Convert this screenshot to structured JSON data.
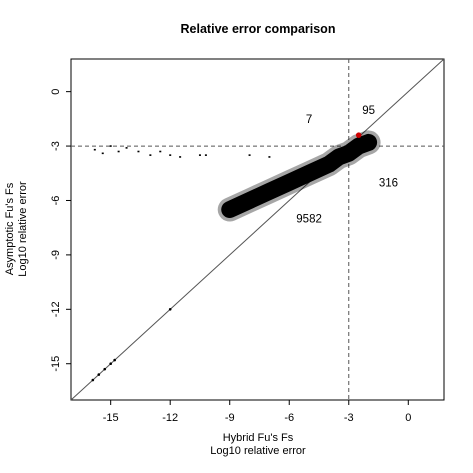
{
  "chart_data": {
    "type": "scatter",
    "title": "Relative error comparison",
    "xlabel": [
      "Hybrid Fu's Fs",
      "Log10 relative error"
    ],
    "ylabel": [
      "Asymptotic Fu's Fs",
      "Log10 relative error"
    ],
    "xlim": [
      -17.0,
      1.8
    ],
    "ylim": [
      -17.0,
      1.8
    ],
    "xticks": [
      -15,
      -12,
      -9,
      -6,
      -3,
      0
    ],
    "yticks": [
      0,
      -3,
      -6,
      -9,
      -12,
      -15
    ],
    "reference_lines": {
      "diagonal": "y = x",
      "vertical_dashed_x": -3,
      "horizontal_dashed_y": -3
    },
    "quadrant_counts": [
      {
        "label": "7",
        "x": -5.0,
        "y": -1.5
      },
      {
        "label": "95",
        "x": -2.0,
        "y": -1.0
      },
      {
        "label": "316",
        "x": -1.0,
        "y": -5.0
      },
      {
        "label": "9582",
        "x": -5.0,
        "y": -7.0
      }
    ],
    "highlight_point": {
      "x": -2.5,
      "y": -2.4,
      "color": "#cc0000"
    },
    "main_cloud": [
      {
        "x": -9.0,
        "y": -6.5
      },
      {
        "x": -8.0,
        "y": -6.0
      },
      {
        "x": -7.0,
        "y": -5.5
      },
      {
        "x": -6.0,
        "y": -5.0
      },
      {
        "x": -5.0,
        "y": -4.5
      },
      {
        "x": -4.0,
        "y": -4.0
      },
      {
        "x": -3.5,
        "y": -3.6
      },
      {
        "x": -3.0,
        "y": -3.4
      },
      {
        "x": -2.5,
        "y": -3.0
      },
      {
        "x": -2.0,
        "y": -2.8
      }
    ],
    "top_outliers": [
      {
        "x": -15.8,
        "y": -3.2
      },
      {
        "x": -15.4,
        "y": -3.4
      },
      {
        "x": -15.0,
        "y": -3.0
      },
      {
        "x": -14.6,
        "y": -3.3
      },
      {
        "x": -14.2,
        "y": -3.1
      },
      {
        "x": -13.6,
        "y": -3.3
      },
      {
        "x": -13.0,
        "y": -3.5
      },
      {
        "x": -12.5,
        "y": -3.3
      },
      {
        "x": -12.0,
        "y": -3.5
      },
      {
        "x": -11.5,
        "y": -3.6
      },
      {
        "x": -10.5,
        "y": -3.5
      },
      {
        "x": -10.2,
        "y": -3.5
      },
      {
        "x": -8.0,
        "y": -3.5
      },
      {
        "x": -7.0,
        "y": -3.6
      }
    ],
    "diagonal_points": [
      {
        "x": -15.9,
        "y": -15.9
      },
      {
        "x": -15.6,
        "y": -15.6
      },
      {
        "x": -15.3,
        "y": -15.3
      },
      {
        "x": -15.0,
        "y": -15.0
      },
      {
        "x": -14.8,
        "y": -14.8
      },
      {
        "x": -12.0,
        "y": -12.0
      }
    ],
    "colors": {
      "points": "#000000",
      "highlight": "#cc0000",
      "lines": "#555555"
    }
  }
}
